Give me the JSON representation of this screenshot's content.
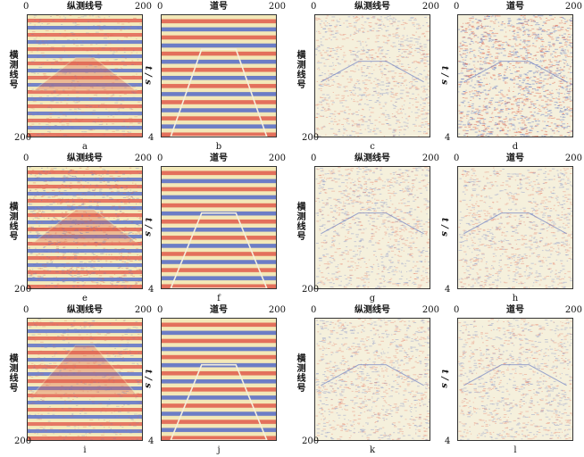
{
  "labels": {
    "trace_axis": "纵测线号",
    "channel_axis": "道号",
    "inline_axis": "横测线号",
    "time_axis": "t / s"
  },
  "ticks": {
    "zero": "0",
    "max": "200",
    "time_max": "4"
  },
  "panels": [
    {
      "caption": "a",
      "top": "trace",
      "side": "inline",
      "style": "model-smooth"
    },
    {
      "caption": "b",
      "top": "channel",
      "side": "time",
      "style": "section-step"
    },
    {
      "caption": "c",
      "top": "trace",
      "side": "inline",
      "style": "noise"
    },
    {
      "caption": "d",
      "top": "channel",
      "side": "time",
      "style": "noise-strong"
    },
    {
      "caption": "e",
      "top": "trace",
      "side": "inline",
      "style": "model-noisy"
    },
    {
      "caption": "f",
      "top": "channel",
      "side": "time",
      "style": "section-trap"
    },
    {
      "caption": "g",
      "top": "trace",
      "side": "inline",
      "style": "noise"
    },
    {
      "caption": "h",
      "top": "channel",
      "side": "time",
      "style": "noise-faint"
    },
    {
      "caption": "i",
      "top": "trace",
      "side": "inline",
      "style": "model-smooth2"
    },
    {
      "caption": "j",
      "top": "channel",
      "side": "time",
      "style": "section-trap"
    },
    {
      "caption": "k",
      "top": "trace",
      "side": "inline",
      "style": "noise"
    },
    {
      "caption": "l",
      "top": "channel",
      "side": "time",
      "style": "noise-faint"
    }
  ],
  "colors": {
    "red": "#e0604a",
    "blue": "#5c6fc0",
    "light": "#f2e6b0",
    "pale": "#f5f0dc"
  }
}
